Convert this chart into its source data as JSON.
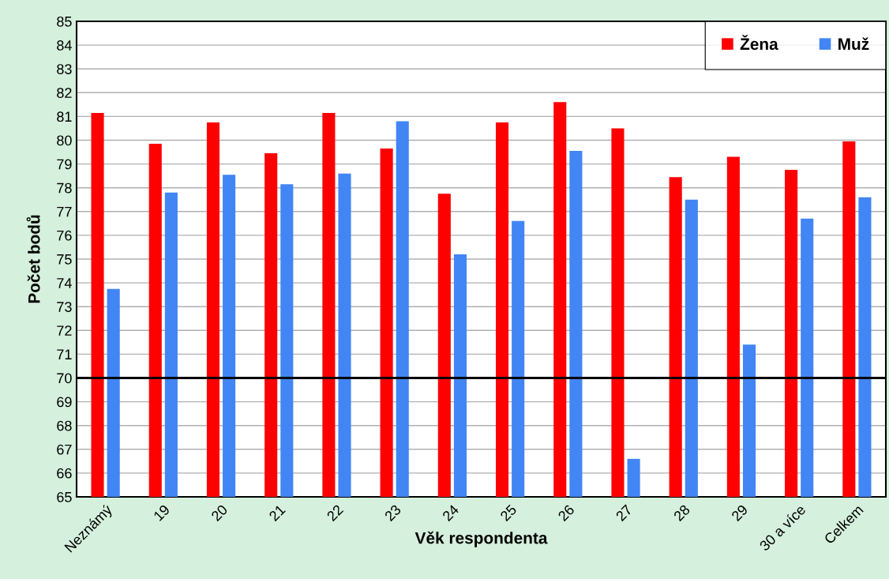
{
  "chart_data": {
    "type": "bar",
    "xlabel": "Věk respondenta",
    "ylabel": "Počet bodů",
    "categories": [
      "Neznámý",
      "19",
      "20",
      "21",
      "22",
      "23",
      "24",
      "25",
      "26",
      "27",
      "28",
      "29",
      "30 a více",
      "Celkem"
    ],
    "series": [
      {
        "name": "Žena",
        "color": "#ff0000",
        "values": [
          81.15,
          79.85,
          80.75,
          79.45,
          81.15,
          79.65,
          77.75,
          80.75,
          81.6,
          80.5,
          78.45,
          79.3,
          78.75,
          79.95
        ]
      },
      {
        "name": "Muž",
        "color": "#4285f4",
        "values": [
          73.75,
          77.8,
          78.55,
          78.15,
          78.6,
          80.8,
          75.2,
          76.6,
          79.55,
          66.6,
          77.5,
          71.4,
          76.7,
          77.6
        ]
      }
    ],
    "ylim": [
      65,
      85
    ],
    "yticks": [
      65,
      66,
      67,
      68,
      69,
      70,
      71,
      72,
      73,
      74,
      75,
      76,
      77,
      78,
      79,
      80,
      81,
      82,
      83,
      84,
      85
    ],
    "ref_lines": [
      {
        "axis": "y",
        "value": 70,
        "color": "#000000",
        "line_style": "solid"
      }
    ],
    "grid": "y",
    "legend": "top right"
  }
}
